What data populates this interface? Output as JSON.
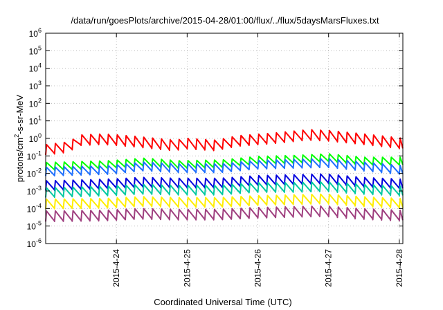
{
  "chart_data": {
    "type": "line",
    "title": "/data/run/goesPlots/archive/2015-04-28/01:00/flux/../flux/5daysMarsFluxes.txt",
    "xlabel": "Coordinated Universal Time (UTC)",
    "ylabel": {
      "prefix": "protons/cm",
      "sup": "2",
      "suffix": "-s-sr-MeV"
    },
    "y_scale": "log",
    "y_exponent_range": [
      -6,
      6
    ],
    "ylim": [
      1e-06,
      1000000.0
    ],
    "y_ticks": [
      {
        "base": "10",
        "exp": "-6"
      },
      {
        "base": "10",
        "exp": "-5"
      },
      {
        "base": "10",
        "exp": "-4"
      },
      {
        "base": "10",
        "exp": "-3"
      },
      {
        "base": "10",
        "exp": "-2"
      },
      {
        "base": "10",
        "exp": "-1"
      },
      {
        "base": "10",
        "exp": "0"
      },
      {
        "base": "10",
        "exp": "1"
      },
      {
        "base": "10",
        "exp": "2"
      },
      {
        "base": "10",
        "exp": "3"
      },
      {
        "base": "10",
        "exp": "4"
      },
      {
        "base": "10",
        "exp": "5"
      },
      {
        "base": "10",
        "exp": "6"
      }
    ],
    "x_ticks": [
      "2015-4-24",
      "2015-4-25",
      "2015-4-26",
      "2015-4-27",
      "2015-4-28"
    ],
    "x_tick_days": [
      24,
      25,
      26,
      27,
      28
    ],
    "xlim_days": [
      23.0,
      28.05
    ],
    "grid": true,
    "legend": "none",
    "series": [
      {
        "color": "#ff0000",
        "level": 0.6,
        "sawtooth_amp": 0.6,
        "waypoints": [
          [
            23.0,
            -0.65
          ],
          [
            23.3,
            -0.5
          ],
          [
            23.5,
            -0.1
          ],
          [
            23.8,
            -0.05
          ],
          [
            24.0,
            -0.1
          ],
          [
            24.3,
            -0.2
          ],
          [
            24.8,
            -0.4
          ],
          [
            25.0,
            -0.3
          ],
          [
            25.4,
            -0.4
          ],
          [
            25.7,
            -0.15
          ],
          [
            26.2,
            0.0
          ],
          [
            26.7,
            0.2
          ],
          [
            27.0,
            0.15
          ],
          [
            27.5,
            -0.05
          ],
          [
            28.05,
            -0.3
          ]
        ]
      },
      {
        "color": "#00ff00",
        "level": 0.05,
        "sawtooth_amp": 0.45,
        "waypoints": [
          [
            23.0,
            -1.6
          ],
          [
            23.9,
            -1.5
          ],
          [
            24.4,
            -1.35
          ],
          [
            24.9,
            -1.5
          ],
          [
            25.5,
            -1.45
          ],
          [
            26.0,
            -1.25
          ],
          [
            26.5,
            -1.2
          ],
          [
            27.0,
            -1.1
          ],
          [
            27.5,
            -1.3
          ],
          [
            28.05,
            -1.3
          ]
        ]
      },
      {
        "color": "#1e6fff",
        "level": 0.015,
        "sawtooth_amp": 0.5,
        "waypoints": [
          [
            23.0,
            -1.9
          ],
          [
            23.9,
            -1.8
          ],
          [
            24.4,
            -1.6
          ],
          [
            24.9,
            -1.7
          ],
          [
            25.5,
            -1.7
          ],
          [
            26.0,
            -1.5
          ],
          [
            26.5,
            -1.45
          ],
          [
            27.0,
            -1.4
          ],
          [
            27.5,
            -1.6
          ],
          [
            28.05,
            -1.8
          ]
        ]
      },
      {
        "color": "#0000dd",
        "level": 0.003,
        "sawtooth_amp": 0.55,
        "waypoints": [
          [
            23.0,
            -2.7
          ],
          [
            23.9,
            -2.6
          ],
          [
            24.4,
            -2.5
          ],
          [
            24.9,
            -2.55
          ],
          [
            25.5,
            -2.55
          ],
          [
            26.0,
            -2.4
          ],
          [
            26.5,
            -2.35
          ],
          [
            27.0,
            -2.3
          ],
          [
            27.5,
            -2.5
          ],
          [
            28.05,
            -2.6
          ]
        ]
      },
      {
        "color": "#00c8a0",
        "level": 0.0012,
        "sawtooth_amp": 0.55,
        "waypoints": [
          [
            23.0,
            -3.1
          ],
          [
            23.9,
            -3.0
          ],
          [
            24.4,
            -2.9
          ],
          [
            24.9,
            -2.95
          ],
          [
            25.5,
            -2.95
          ],
          [
            26.0,
            -2.8
          ],
          [
            26.5,
            -2.8
          ],
          [
            27.0,
            -2.75
          ],
          [
            27.5,
            -2.9
          ],
          [
            28.05,
            -3.0
          ]
        ]
      },
      {
        "color": "#ffee00",
        "level": 0.00025,
        "sawtooth_amp": 0.55,
        "waypoints": [
          [
            23.0,
            -3.75
          ],
          [
            23.9,
            -3.7
          ],
          [
            24.4,
            -3.6
          ],
          [
            24.9,
            -3.65
          ],
          [
            25.5,
            -3.65
          ],
          [
            26.0,
            -3.55
          ],
          [
            26.5,
            -3.5
          ],
          [
            27.0,
            -3.45
          ],
          [
            27.5,
            -3.6
          ],
          [
            28.05,
            -3.7
          ]
        ]
      },
      {
        "color": "#9f3f7f",
        "level": 5e-05,
        "sawtooth_amp": 0.6,
        "waypoints": [
          [
            23.0,
            -4.45
          ],
          [
            23.9,
            -4.4
          ],
          [
            24.4,
            -4.3
          ],
          [
            24.9,
            -4.35
          ],
          [
            25.5,
            -4.35
          ],
          [
            26.0,
            -4.25
          ],
          [
            26.5,
            -4.2
          ],
          [
            27.0,
            -4.15
          ],
          [
            27.5,
            -4.3
          ],
          [
            28.05,
            -4.4
          ]
        ]
      }
    ],
    "sawtooth_period_days": 0.125
  }
}
